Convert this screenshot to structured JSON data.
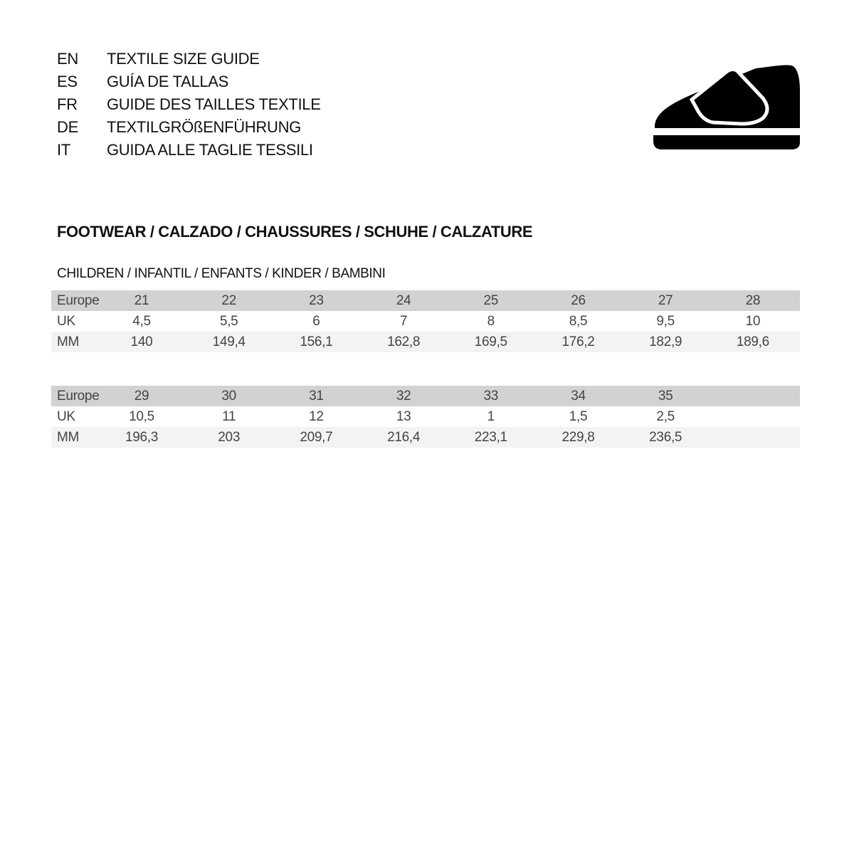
{
  "languages": [
    {
      "code": "EN",
      "title": "TEXTILE SIZE GUIDE"
    },
    {
      "code": "ES",
      "title": "GUÍA DE TALLAS"
    },
    {
      "code": "FR",
      "title": "GUIDE DES TAILLES TEXTILE"
    },
    {
      "code": "DE",
      "title": "TEXTILGRÖßENFÜHRUNG"
    },
    {
      "code": "IT",
      "title": "GUIDA ALLE TAGLIE TESSILI"
    }
  ],
  "icon": "children-velcro-shoe-icon",
  "section_title": "FOOTWEAR / CALZADO / CHAUSSURES / SCHUHE / CALZATURE",
  "subsection_title": "CHILDREN / INFANTIL / ENFANTS / KINDER / BAMBINI",
  "tables": [
    {
      "rows": [
        {
          "label": "Europe",
          "values": [
            "21",
            "22",
            "23",
            "24",
            "25",
            "26",
            "27",
            "28"
          ]
        },
        {
          "label": "UK",
          "values": [
            "4,5",
            "5,5",
            "6",
            "7",
            "8",
            "8,5",
            "9,5",
            "10"
          ]
        },
        {
          "label": "MM",
          "values": [
            "140",
            "149,4",
            "156,1",
            "162,8",
            "169,5",
            "176,2",
            "182,9",
            "189,6"
          ]
        }
      ]
    },
    {
      "rows": [
        {
          "label": "Europe",
          "values": [
            "29",
            "30",
            "31",
            "32",
            "33",
            "34",
            "35"
          ]
        },
        {
          "label": "UK",
          "values": [
            "10,5",
            "11",
            "12",
            "13",
            "1",
            "1,5",
            "2,5"
          ]
        },
        {
          "label": "MM",
          "values": [
            "196,3",
            "203",
            "209,7",
            "216,4",
            "223,1",
            "229,8",
            "236,5"
          ]
        }
      ]
    }
  ]
}
